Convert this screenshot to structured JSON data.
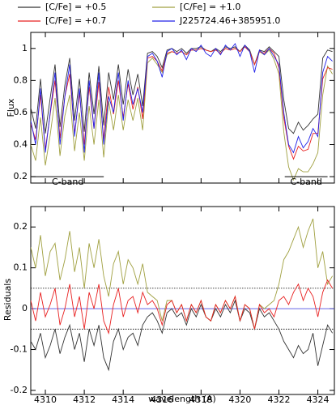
{
  "chart_data": [
    {
      "type": "line",
      "y_label": "Flux",
      "x": [
        4309.25,
        4309.5,
        4309.75,
        4310,
        4310.25,
        4310.5,
        4310.75,
        4311,
        4311.25,
        4311.5,
        4311.75,
        4312,
        4312.25,
        4312.5,
        4312.75,
        4313,
        4313.25,
        4313.5,
        4313.75,
        4314,
        4314.25,
        4314.5,
        4314.75,
        4315,
        4315.25,
        4315.5,
        4315.75,
        4316,
        4316.25,
        4316.5,
        4316.75,
        4317,
        4317.25,
        4317.5,
        4317.75,
        4318,
        4318.25,
        4318.5,
        4318.75,
        4319,
        4319.25,
        4319.5,
        4319.75,
        4320,
        4320.25,
        4320.5,
        4320.75,
        4321,
        4321.25,
        4321.5,
        4321.75,
        4322,
        4322.25,
        4322.5,
        4322.75,
        4323,
        4323.25,
        4323.5,
        4323.75,
        4324,
        4324.25,
        4324.5,
        4324.75
      ],
      "xlim": [
        4309.25,
        4324.85
      ],
      "ylim": [
        0.16,
        1.1
      ],
      "yticks": [
        0.2,
        0.4,
        0.6,
        0.8,
        1.0
      ],
      "series": [
        {
          "name": "[C/Fe] = +0.5",
          "color": "#333333",
          "values": [
            0.63,
            0.5,
            0.81,
            0.47,
            0.69,
            0.9,
            0.51,
            0.77,
            0.94,
            0.55,
            0.81,
            0.48,
            0.85,
            0.59,
            0.89,
            0.52,
            0.85,
            0.68,
            0.9,
            0.65,
            0.87,
            0.71,
            0.84,
            0.64,
            0.97,
            0.98,
            0.95,
            0.88,
            0.99,
            1.0,
            0.98,
            1.0,
            0.97,
            1.0,
            1.0,
            1.01,
            0.99,
            0.98,
            1.0,
            0.98,
            1.01,
            1.0,
            1.01,
            0.98,
            1.02,
            0.99,
            0.9,
            0.99,
            0.98,
            1.01,
            0.98,
            0.95,
            0.68,
            0.5,
            0.47,
            0.54,
            0.49,
            0.52,
            0.56,
            0.59,
            0.94,
            0.99,
            0.98
          ]
        },
        {
          "name": "[C/Fe] = +1.0",
          "color": "#a0a040",
          "values": [
            0.4,
            0.3,
            0.57,
            0.27,
            0.46,
            0.69,
            0.33,
            0.58,
            0.71,
            0.36,
            0.6,
            0.3,
            0.64,
            0.4,
            0.68,
            0.32,
            0.67,
            0.49,
            0.71,
            0.49,
            0.68,
            0.55,
            0.69,
            0.49,
            0.91,
            0.94,
            0.9,
            0.85,
            0.96,
            0.98,
            0.97,
            0.98,
            0.96,
            0.99,
            0.99,
            1.0,
            0.99,
            0.98,
            0.99,
            0.97,
            1.0,
            0.99,
            1.0,
            0.98,
            1.01,
            0.98,
            0.9,
            0.98,
            0.96,
            0.99,
            0.93,
            0.84,
            0.48,
            0.26,
            0.18,
            0.25,
            0.23,
            0.23,
            0.28,
            0.35,
            0.71,
            0.89,
            0.84
          ]
        },
        {
          "name": "[C/Fe] = +0.7",
          "color": "#e82020",
          "values": [
            0.53,
            0.43,
            0.71,
            0.37,
            0.59,
            0.8,
            0.44,
            0.7,
            0.84,
            0.47,
            0.72,
            0.4,
            0.76,
            0.5,
            0.79,
            0.43,
            0.76,
            0.59,
            0.8,
            0.57,
            0.78,
            0.62,
            0.76,
            0.56,
            0.94,
            0.95,
            0.92,
            0.86,
            0.97,
            0.98,
            0.97,
            0.98,
            0.96,
            0.99,
            0.99,
            1.0,
            0.99,
            0.98,
            0.99,
            0.97,
            1.0,
            0.99,
            1.0,
            0.98,
            1.01,
            0.98,
            0.9,
            0.98,
            0.97,
            1.0,
            0.97,
            0.88,
            0.57,
            0.39,
            0.31,
            0.39,
            0.36,
            0.37,
            0.47,
            0.47,
            0.81,
            0.88,
            0.87
          ]
        },
        {
          "name": "J225724.46+385951.0",
          "color": "#2020e8",
          "values": [
            0.55,
            0.4,
            0.75,
            0.35,
            0.6,
            0.85,
            0.4,
            0.7,
            0.9,
            0.45,
            0.75,
            0.35,
            0.8,
            0.5,
            0.85,
            0.4,
            0.7,
            0.6,
            0.85,
            0.55,
            0.8,
            0.65,
            0.75,
            0.6,
            0.95,
            0.97,
            0.92,
            0.82,
            0.98,
            1.0,
            0.96,
            0.99,
            0.93,
            1.0,
            0.98,
            1.02,
            0.97,
            0.95,
            1.0,
            0.96,
            1.02,
            0.99,
            1.03,
            0.95,
            1.02,
            0.98,
            0.85,
            0.99,
            0.96,
            1.0,
            0.95,
            0.9,
            0.6,
            0.4,
            0.35,
            0.45,
            0.38,
            0.42,
            0.5,
            0.45,
            0.85,
            0.95,
            0.92
          ]
        }
      ],
      "annotations": [
        {
          "text": "C-band",
          "x": [
            4309.3,
            4313.0
          ],
          "y": 0.2
        },
        {
          "text": "C-band",
          "x": [
            4322.3,
            4324.5
          ],
          "y": 0.2
        }
      ]
    },
    {
      "type": "line",
      "y_label": "Residuals",
      "x_label": "wavelength (A)",
      "x": [
        4309.25,
        4309.5,
        4309.75,
        4310,
        4310.25,
        4310.5,
        4310.75,
        4311,
        4311.25,
        4311.5,
        4311.75,
        4312,
        4312.25,
        4312.5,
        4312.75,
        4313,
        4313.25,
        4313.5,
        4313.75,
        4314,
        4314.25,
        4314.5,
        4314.75,
        4315,
        4315.25,
        4315.5,
        4315.75,
        4316,
        4316.25,
        4316.5,
        4316.75,
        4317,
        4317.25,
        4317.5,
        4317.75,
        4318,
        4318.25,
        4318.5,
        4318.75,
        4319,
        4319.25,
        4319.5,
        4319.75,
        4320,
        4320.25,
        4320.5,
        4320.75,
        4321,
        4321.25,
        4321.5,
        4321.75,
        4322,
        4322.25,
        4322.5,
        4322.75,
        4323,
        4323.25,
        4323.5,
        4323.75,
        4324,
        4324.25,
        4324.5,
        4324.75
      ],
      "xlim": [
        4309.25,
        4324.85
      ],
      "xticks": [
        4310,
        4312,
        4314,
        4316,
        4318,
        4320,
        4322,
        4324
      ],
      "ylim": [
        -0.21,
        0.25
      ],
      "yticks": [
        -0.2,
        -0.1,
        0.0,
        0.1,
        0.2
      ],
      "series": [
        {
          "color": "#333333",
          "values": [
            -0.08,
            -0.1,
            -0.06,
            -0.12,
            -0.09,
            -0.05,
            -0.11,
            -0.07,
            -0.04,
            -0.1,
            -0.06,
            -0.13,
            -0.05,
            -0.09,
            -0.04,
            -0.12,
            -0.15,
            -0.08,
            -0.05,
            -0.1,
            -0.07,
            -0.06,
            -0.09,
            -0.04,
            -0.02,
            -0.01,
            -0.03,
            -0.06,
            -0.01,
            0.0,
            -0.02,
            -0.01,
            -0.04,
            0.0,
            -0.02,
            0.01,
            -0.02,
            -0.03,
            0.0,
            -0.02,
            0.01,
            -0.01,
            0.02,
            -0.03,
            0.0,
            -0.01,
            -0.05,
            0.0,
            -0.02,
            -0.01,
            -0.03,
            -0.05,
            -0.08,
            -0.1,
            -0.12,
            -0.09,
            -0.11,
            -0.1,
            -0.06,
            -0.14,
            -0.09,
            -0.04,
            -0.06
          ]
        },
        {
          "color": "#a0a040",
          "values": [
            0.15,
            0.1,
            0.18,
            0.08,
            0.14,
            0.16,
            0.07,
            0.12,
            0.19,
            0.09,
            0.15,
            0.05,
            0.16,
            0.1,
            0.17,
            0.08,
            0.03,
            0.11,
            0.14,
            0.06,
            0.12,
            0.1,
            0.06,
            0.11,
            0.04,
            0.03,
            0.02,
            -0.03,
            0.02,
            0.02,
            -0.01,
            0.01,
            -0.03,
            0.01,
            -0.01,
            0.02,
            -0.02,
            -0.03,
            0.01,
            -0.01,
            0.02,
            0.0,
            0.03,
            -0.03,
            0.01,
            0.0,
            -0.05,
            0.01,
            0.0,
            0.01,
            0.02,
            0.06,
            0.12,
            0.14,
            0.17,
            0.2,
            0.15,
            0.19,
            0.22,
            0.1,
            0.14,
            0.06,
            0.08
          ]
        },
        {
          "color": "#e82020",
          "values": [
            0.02,
            -0.03,
            0.04,
            -0.02,
            0.01,
            0.05,
            -0.04,
            0.0,
            0.06,
            -0.02,
            0.03,
            -0.05,
            0.04,
            0.0,
            0.06,
            -0.03,
            -0.06,
            0.01,
            0.05,
            -0.02,
            0.02,
            0.03,
            -0.01,
            0.04,
            0.01,
            0.02,
            0.0,
            -0.04,
            0.01,
            0.02,
            -0.01,
            0.01,
            -0.03,
            0.01,
            -0.01,
            0.02,
            -0.02,
            -0.03,
            0.01,
            -0.01,
            0.02,
            0.0,
            0.03,
            -0.03,
            0.01,
            0.0,
            -0.05,
            0.01,
            -0.01,
            0.0,
            -0.02,
            0.02,
            0.03,
            0.01,
            0.04,
            0.06,
            0.02,
            0.05,
            0.03,
            -0.02,
            0.04,
            0.07,
            0.05
          ]
        }
      ],
      "reference_lines": [
        {
          "value": 0.05,
          "style": "dotted",
          "color": "#000000"
        },
        {
          "value": 0.0,
          "style": "solid",
          "color": "#5050e0"
        },
        {
          "value": -0.05,
          "style": "dotted",
          "color": "#000000"
        }
      ]
    }
  ]
}
